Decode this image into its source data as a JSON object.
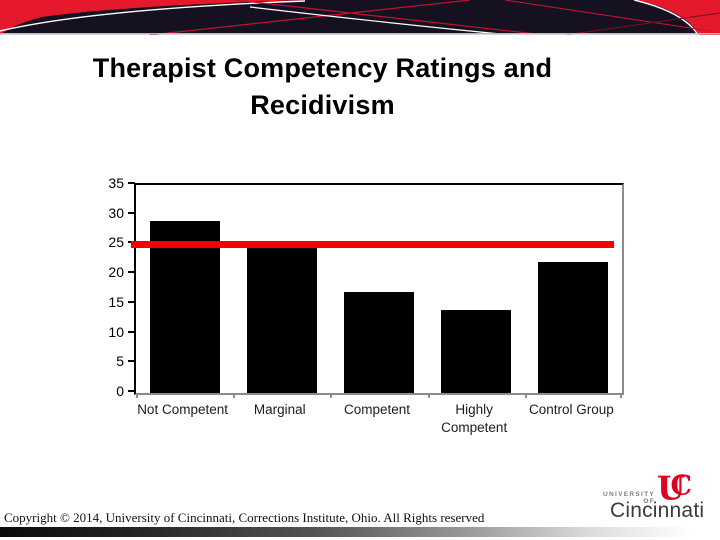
{
  "slide": {
    "title": {
      "line1": "Therapist Competency Ratings and",
      "line2": "Recidivism"
    }
  },
  "chart_data": {
    "type": "bar",
    "categories": [
      "Not Competent",
      "Marginal",
      "Competent",
      "Highly Competent",
      "Control Group"
    ],
    "values": [
      29,
      24.5,
      17,
      14,
      22
    ],
    "title": "",
    "xlabel": "",
    "ylabel": "",
    "ylim": [
      0,
      35
    ],
    "yticks": [
      0,
      5,
      10,
      15,
      20,
      25,
      30,
      35
    ],
    "reference_line": {
      "value": 25,
      "color": "#f40000"
    },
    "bar_color": "#000000",
    "grid": false,
    "legend": "none"
  },
  "footer": {
    "copyright": "Copyright © 2014, University of Cincinnati, Corrections Institute, Ohio. All Rights reserved"
  },
  "logo": {
    "university_of": "UNIVERSITY OF",
    "cincinnati": "Cincinnati",
    "monogram": "UC",
    "brand_red": "#e00122"
  },
  "banner_colors": {
    "background": "#151120",
    "red": "#e5182c",
    "line_red": "#c41230",
    "line_white": "#ffffff",
    "divider": "#b9b9c0"
  }
}
